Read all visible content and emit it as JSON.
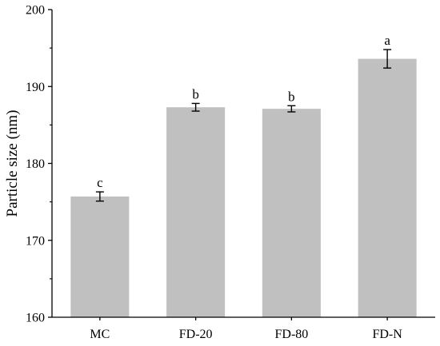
{
  "chart_data": {
    "type": "bar",
    "title": "",
    "xlabel": "",
    "ylabel": "Particle size (nm)",
    "ylim": [
      160,
      200
    ],
    "yticks": [
      160,
      170,
      180,
      190,
      200
    ],
    "categories": [
      "MC",
      "FD-20",
      "FD-80",
      "FD-N"
    ],
    "values": [
      175.7,
      187.3,
      187.1,
      193.6
    ],
    "errors": [
      0.6,
      0.5,
      0.4,
      1.2
    ],
    "significance": [
      "c",
      "b",
      "b",
      "a"
    ],
    "grid": false,
    "legend": "none",
    "colors": {
      "bar": "#c0c0c0",
      "axis": "#000000",
      "error": "#000000"
    }
  }
}
